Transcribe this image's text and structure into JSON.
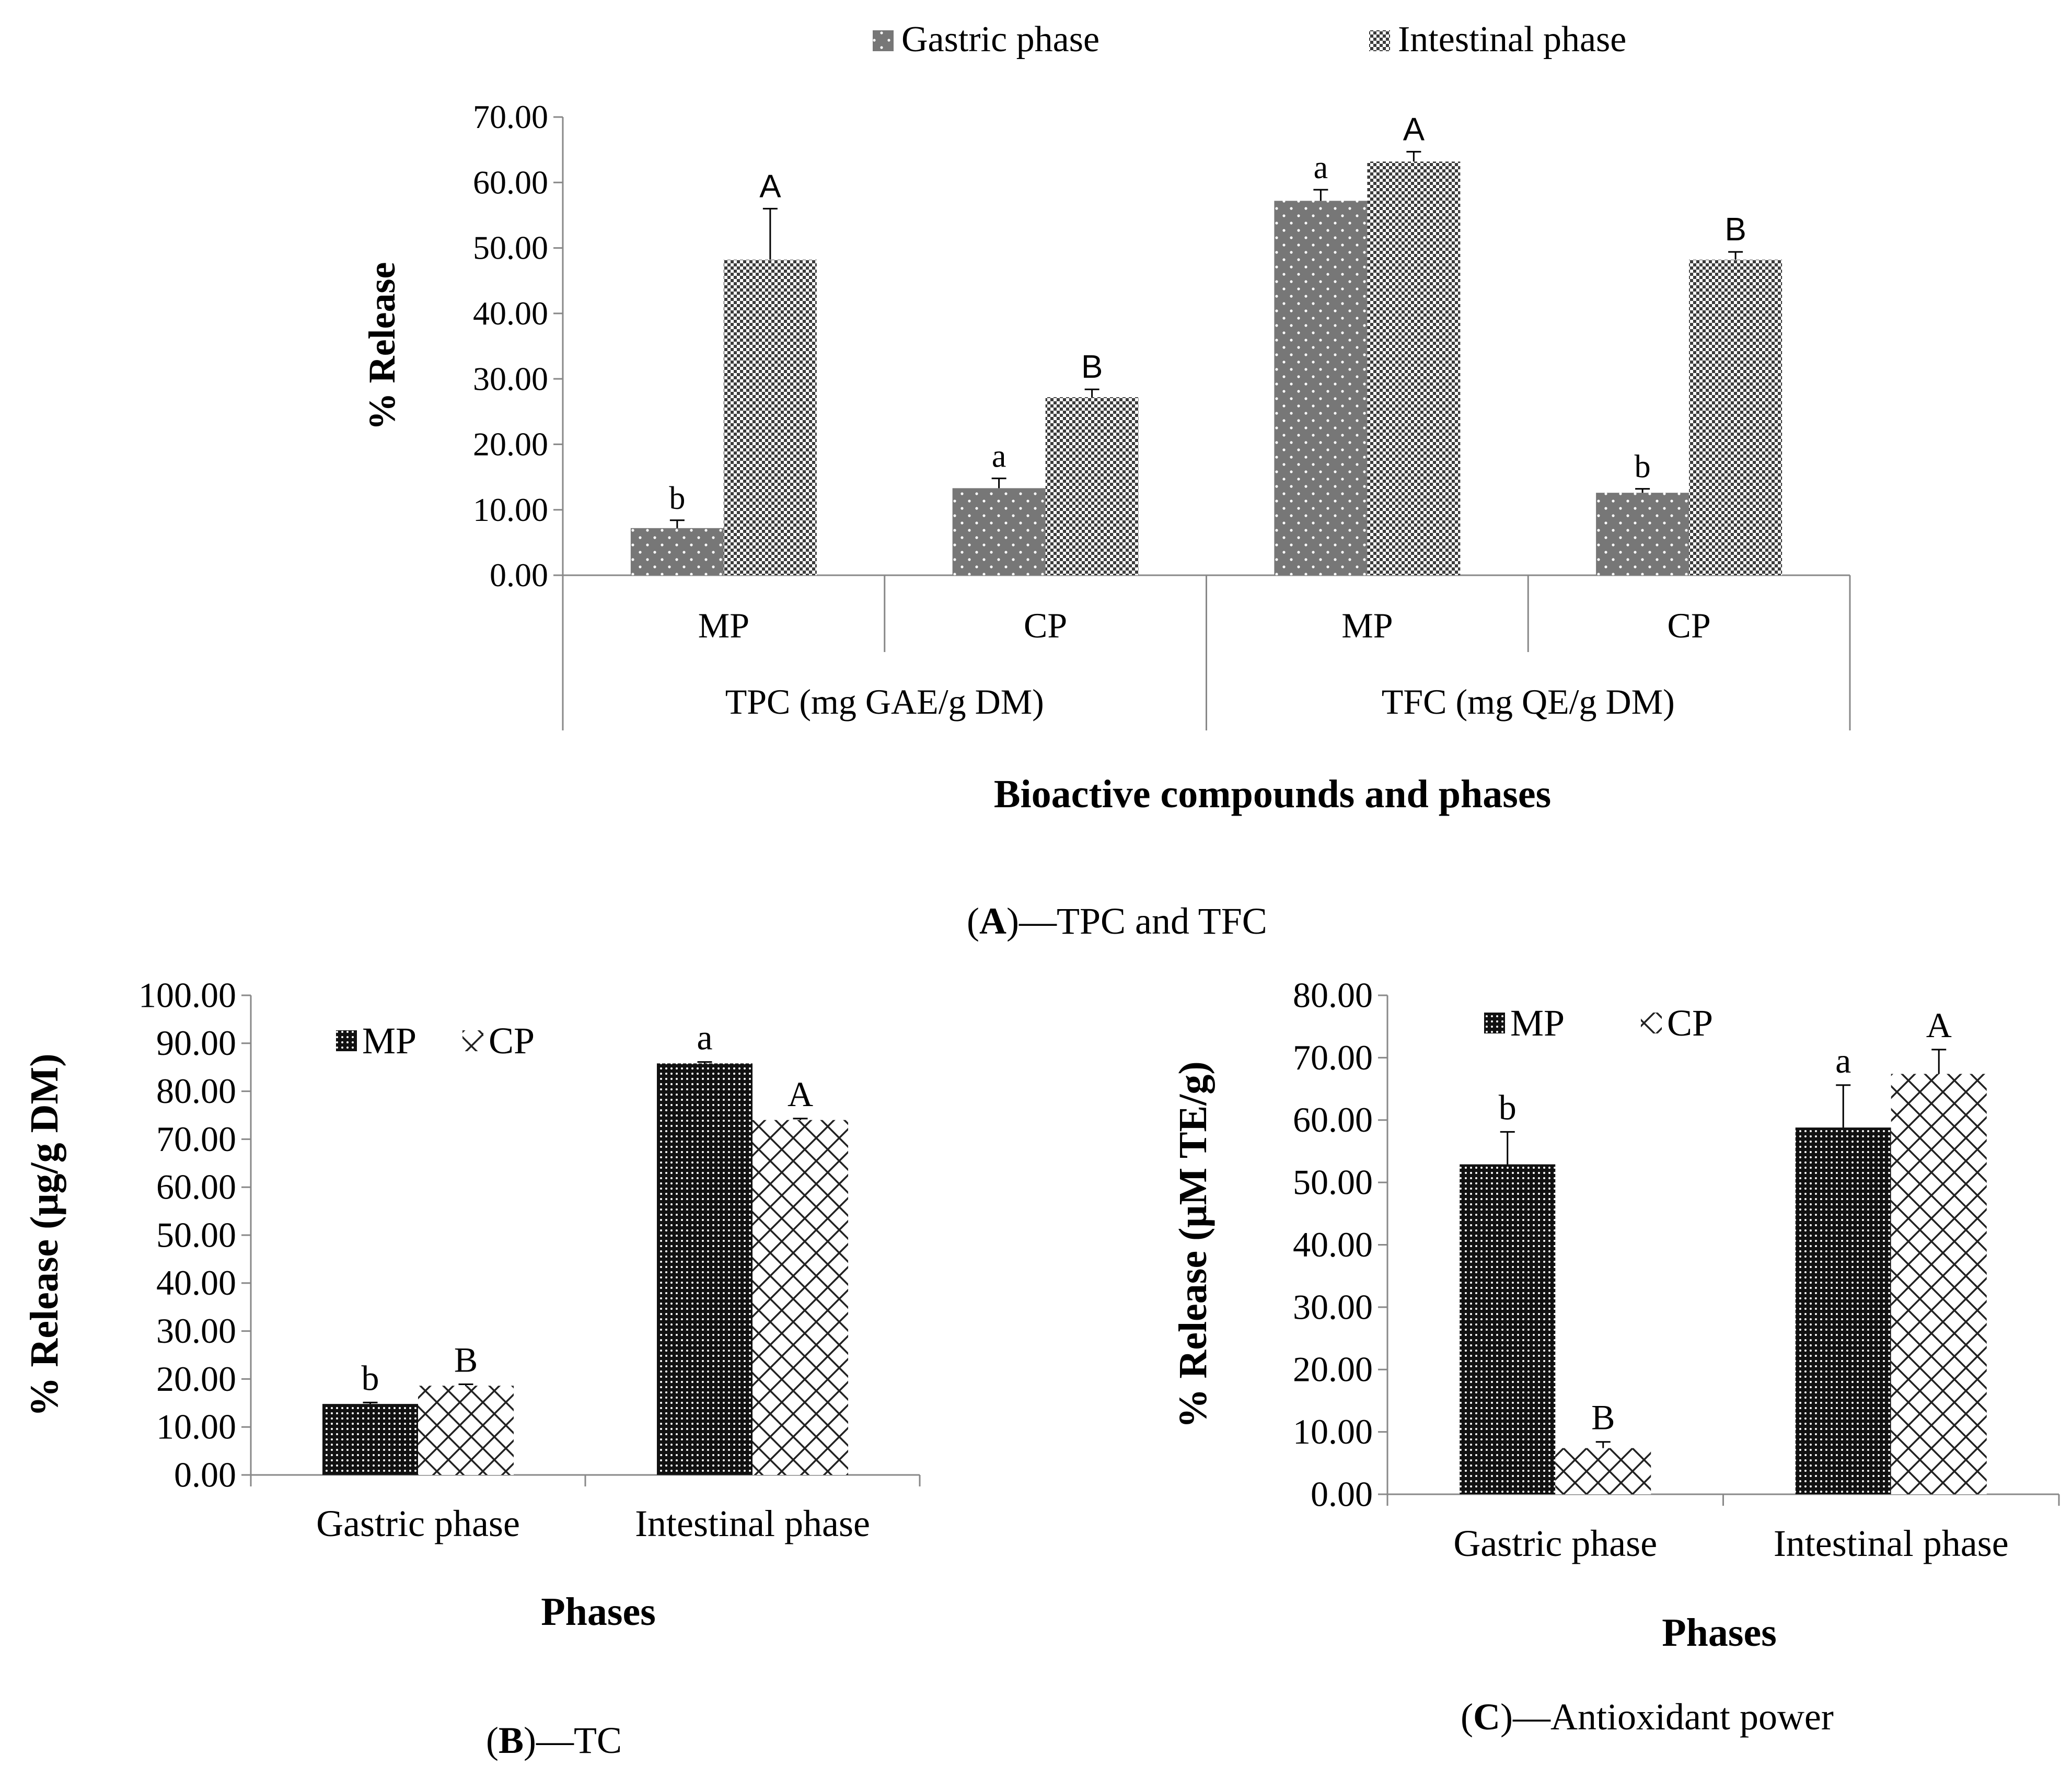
{
  "figure": {
    "captions": {
      "A": {
        "letter": "A",
        "text": "—TPC and TFC"
      },
      "B": {
        "letter": "B",
        "text": "—TC"
      },
      "C": {
        "letter": "C",
        "text": "—Antioxidant power"
      }
    }
  },
  "chart_data": [
    {
      "id": "A",
      "type": "bar",
      "title": "",
      "legend": {
        "position": "top",
        "entries": [
          "Gastric phase",
          "Intestinal phase"
        ]
      },
      "ylabel": "% Release",
      "xlabel": "Bioactive compounds and phases",
      "ylim": [
        0,
        70
      ],
      "yticks": [
        "0.00",
        "10.00",
        "20.00",
        "30.00",
        "40.00",
        "50.00",
        "60.00",
        "70.00"
      ],
      "categories": [
        "MP",
        "CP",
        "MP",
        "CP"
      ],
      "groups": [
        "TPC (mg GAE/g DM)",
        "TFC (mg QE/g DM)"
      ],
      "series": [
        {
          "name": "Gastric phase",
          "values": [
            7.2,
            13.3,
            57.2,
            12.6
          ],
          "errors": [
            1.2,
            1.5,
            1.7,
            0.6
          ],
          "labels": [
            "b",
            "a",
            "a",
            "b"
          ]
        },
        {
          "name": "Intestinal phase",
          "values": [
            48.2,
            27.2,
            63.2,
            48.2
          ],
          "errors": [
            7.8,
            1.2,
            1.5,
            1.2
          ],
          "labels": [
            "A",
            "B",
            "A",
            "B"
          ]
        }
      ]
    },
    {
      "id": "B",
      "type": "bar",
      "title": "",
      "legend": {
        "position": "top-left",
        "entries": [
          "MP",
          "CP"
        ]
      },
      "ylabel": "% Release (μg/g DM)",
      "xlabel": "Phases",
      "ylim": [
        0,
        100
      ],
      "yticks": [
        "0.00",
        "10.00",
        "20.00",
        "30.00",
        "40.00",
        "50.00",
        "60.00",
        "70.00",
        "80.00",
        "90.00",
        "100.00"
      ],
      "categories": [
        "Gastric phase",
        "Intestinal phase"
      ],
      "series": [
        {
          "name": "MP",
          "values": [
            14.8,
            85.8
          ],
          "errors": [
            0.3,
            0.3
          ],
          "labels": [
            "b",
            "a"
          ]
        },
        {
          "name": "CP",
          "values": [
            18.6,
            74.0
          ],
          "errors": [
            0.3,
            0.3
          ],
          "labels": [
            "B",
            "A"
          ]
        }
      ]
    },
    {
      "id": "C",
      "type": "bar",
      "title": "",
      "legend": {
        "position": "top-left",
        "entries": [
          "MP",
          "CP"
        ]
      },
      "ylabel": "% Release (μM TE/g)",
      "xlabel": "Phases",
      "ylim": [
        0,
        80
      ],
      "yticks": [
        "0.00",
        "10.00",
        "20.00",
        "30.00",
        "40.00",
        "50.00",
        "60.00",
        "70.00",
        "80.00"
      ],
      "categories": [
        "Gastric phase",
        "Intestinal phase"
      ],
      "series": [
        {
          "name": "MP",
          "values": [
            52.9,
            58.8
          ],
          "errors": [
            5.2,
            6.8
          ],
          "labels": [
            "b",
            "a"
          ]
        },
        {
          "name": "CP",
          "values": [
            7.4,
            67.4
          ],
          "errors": [
            1.0,
            3.9
          ],
          "labels": [
            "B",
            "A"
          ]
        }
      ]
    }
  ]
}
